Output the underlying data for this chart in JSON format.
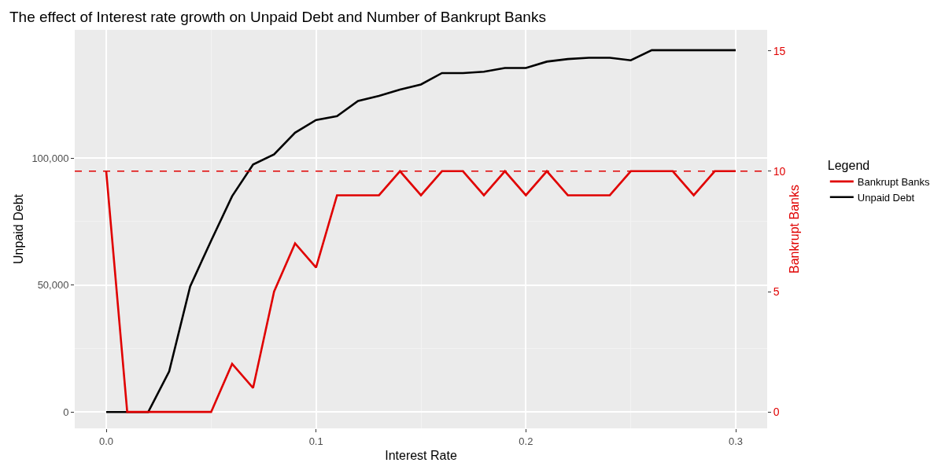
{
  "chart_data": {
    "type": "line",
    "title": "The effect of Interest rate growth on Unpaid Debt and Number of Bankrupt Banks",
    "xlabel": "Interest Rate",
    "ylabel": "Unpaid Debt",
    "y2label": "Bankrupt Banks",
    "legend_title": "Legend",
    "x": [
      0,
      0.01,
      0.02,
      0.03,
      0.04,
      0.05,
      0.06,
      0.07,
      0.08,
      0.09,
      0.1,
      0.11,
      0.12,
      0.13,
      0.14,
      0.15,
      0.16,
      0.17,
      0.18,
      0.19,
      0.2,
      0.21,
      0.22,
      0.23,
      0.24,
      0.25,
      0.26,
      0.27,
      0.28,
      0.29,
      0.3
    ],
    "series": [
      {
        "name": "Bankrupt Banks",
        "color": "#e00000",
        "axis": "y2",
        "values": [
          10,
          0,
          0,
          0,
          0,
          0,
          2,
          1,
          5,
          7,
          6,
          9,
          9,
          9,
          10,
          9,
          10,
          10,
          9,
          10,
          9,
          10,
          9,
          9,
          9,
          10,
          10,
          10,
          9,
          10,
          10
        ]
      },
      {
        "name": "Unpaid Debt",
        "color": "#000000",
        "values": [
          0,
          0,
          0,
          16000,
          49500,
          67500,
          85000,
          97500,
          101500,
          110000,
          115000,
          116500,
          122500,
          124500,
          127000,
          129000,
          133500,
          133500,
          134000,
          135500,
          135500,
          138000,
          139000,
          139500,
          139500,
          138500,
          142500,
          142500,
          142500,
          142500,
          142500
        ]
      }
    ],
    "xlim": [
      -0.015,
      0.315
    ],
    "xticks": [
      {
        "value": 0,
        "label": "0.0"
      },
      0.1,
      0.2,
      0.3
    ],
    "ylim": [
      -6400,
      150500
    ],
    "yticks": [
      0,
      {
        "value": 50000,
        "label": "50,000"
      },
      {
        "value": 100000,
        "label": "100,000"
      }
    ],
    "y2lim": [
      -0.68,
      15.87
    ],
    "y2ticks": [
      0,
      5,
      10,
      15
    ],
    "ref_lines": [
      {
        "axis": "y2",
        "value": 10,
        "color": "#e00000",
        "line_style": "dashed"
      }
    ],
    "grid": true,
    "legend": "right",
    "marker": "none",
    "line_style": "solid"
  }
}
